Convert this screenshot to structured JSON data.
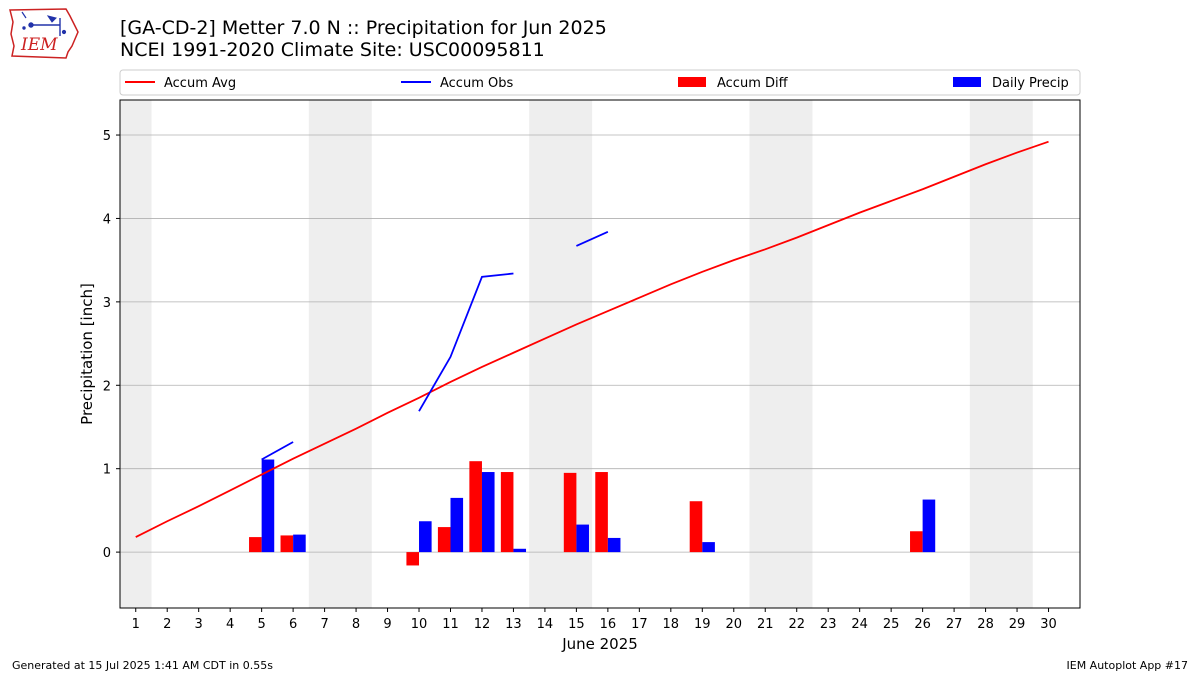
{
  "logo_text": "IEM",
  "title_line1": "[GA-CD-2] Metter 7.0 N :: Precipitation for Jun 2025",
  "title_line2": "NCEI 1991-2020 Climate Site: USC00095811",
  "footer_left": "Generated at 15 Jul 2025 1:41 AM CDT in 0.55s",
  "footer_right": "IEM Autoplot App #17",
  "colors": {
    "avg": "#ff0000",
    "obs": "#0000ff",
    "diff": "#ff0000",
    "daily": "#0000ff",
    "weekend_band": "#eeeeee",
    "grid": "#b0b0b0"
  },
  "chart_data": {
    "type": "bar",
    "xlabel": "June 2025",
    "ylabel": "Precipitation [inch]",
    "xlim": [
      0.5,
      31
    ],
    "ylim": [
      -0.67,
      5.42
    ],
    "x_ticks": [
      1,
      2,
      3,
      4,
      5,
      6,
      7,
      8,
      9,
      10,
      11,
      12,
      13,
      14,
      15,
      16,
      17,
      18,
      19,
      20,
      21,
      22,
      23,
      24,
      25,
      26,
      27,
      28,
      29,
      30
    ],
    "x_tick_labels": [
      "1",
      "2",
      "3",
      "4",
      "5",
      "6",
      "7",
      "8",
      "9",
      "10",
      "11",
      "12",
      "13",
      "14",
      "15",
      "16",
      "17",
      "18",
      "19",
      "20",
      "21",
      "22",
      "23",
      "24",
      "25",
      "26",
      "27",
      "28",
      "29",
      "30"
    ],
    "y_ticks": [
      0,
      1,
      2,
      3,
      4,
      5
    ],
    "y_tick_labels": [
      "0",
      "1",
      "2",
      "3",
      "4",
      "5"
    ],
    "grid": "horizontal",
    "legend": {
      "placement": "top, above plot",
      "entries": [
        {
          "label": "Accum Avg",
          "kind": "line",
          "color": "#ff0000"
        },
        {
          "label": "Accum Obs",
          "kind": "line",
          "color": "#0000ff"
        },
        {
          "label": "Accum Diff",
          "kind": "bar",
          "color": "#ff0000"
        },
        {
          "label": "Daily Precip",
          "kind": "bar",
          "color": "#0000ff"
        }
      ]
    },
    "weekend_bands": [
      [
        0.5,
        1.5
      ],
      [
        6.5,
        8.5
      ],
      [
        13.5,
        15.5
      ],
      [
        20.5,
        22.5
      ],
      [
        27.5,
        29.5
      ]
    ],
    "series": [
      {
        "name": "Accum Avg",
        "kind": "line",
        "x": [
          1,
          2,
          3,
          4,
          5,
          6,
          7,
          8,
          9,
          10,
          11,
          12,
          13,
          14,
          15,
          16,
          17,
          18,
          19,
          20,
          21,
          22,
          23,
          24,
          25,
          26,
          27,
          28,
          29,
          30
        ],
        "values": [
          0.18,
          0.37,
          0.55,
          0.74,
          0.93,
          1.12,
          1.3,
          1.48,
          1.67,
          1.85,
          2.04,
          2.22,
          2.39,
          2.56,
          2.73,
          2.89,
          3.05,
          3.21,
          3.36,
          3.5,
          3.63,
          3.77,
          3.92,
          4.07,
          4.21,
          4.35,
          4.5,
          4.65,
          4.79,
          4.92
        ]
      },
      {
        "name": "Accum Obs",
        "kind": "line",
        "segments": [
          {
            "x": [
              5,
              6
            ],
            "values": [
              1.11,
              1.32
            ]
          },
          {
            "x": [
              10,
              11,
              12,
              13
            ],
            "values": [
              1.69,
              2.34,
              3.3,
              3.34
            ]
          },
          {
            "x": [
              15,
              16
            ],
            "values": [
              3.67,
              3.84
            ]
          }
        ]
      },
      {
        "name": "Accum Diff",
        "kind": "bar",
        "x": [
          5,
          6,
          10,
          11,
          12,
          13,
          15,
          16,
          19,
          26
        ],
        "values": [
          0.18,
          0.2,
          -0.16,
          0.3,
          1.09,
          0.96,
          0.95,
          0.96,
          0.61,
          0.25
        ]
      },
      {
        "name": "Daily Precip",
        "kind": "bar",
        "x": [
          5,
          6,
          10,
          11,
          12,
          13,
          15,
          16,
          19,
          26
        ],
        "values": [
          1.11,
          0.21,
          0.37,
          0.65,
          0.96,
          0.04,
          0.33,
          0.17,
          0.12,
          0.63
        ]
      }
    ]
  }
}
